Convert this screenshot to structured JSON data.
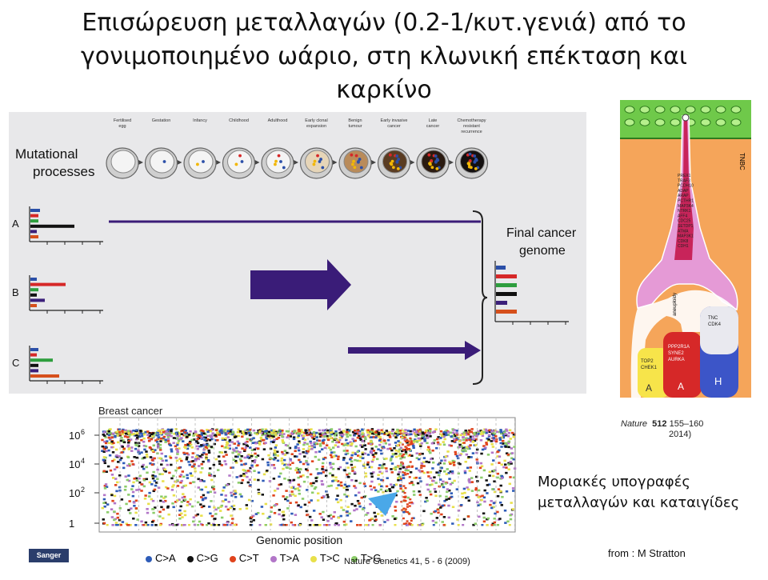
{
  "title": "Επισώρευση μεταλλαγών (0.2-1/κυτ.γενιά) από το γονιμοποιημένο ωάριο, στη κλωνική επέκταση και καρκίνο",
  "diagram": {
    "processes_label": "Mutational\nprocesses",
    "final_label": "Final cancer\ngenome",
    "stages": [
      "Fertilised\negg",
      "Gestation",
      "Infancy",
      "Childhood",
      "Adulthood",
      "Early clonal\nexpansion",
      "Benign\ntumour",
      "Early invasive\ncancer",
      "Late\ncancer",
      "Chemotherapy\nresistant\nrecurrence"
    ],
    "rows": [
      "A",
      "B",
      "C"
    ],
    "colors": {
      "blue": "#2b4fa8",
      "red": "#d62828",
      "green": "#2e9e3e",
      "black": "#111111",
      "purple": "#3b1f7a",
      "orange": "#d6501c",
      "arrow": "#3a1c78"
    }
  },
  "clone_tree": {
    "top_label": "TNBC",
    "genes_left": [
      "PREX1",
      "TRAF3",
      "PCDH10",
      "ADAP",
      "ARAP",
      "PCTHR1",
      "MAP3K4",
      "NTRK1",
      "AFF4",
      "CDC25",
      "SETDP1",
      "ATMA",
      "MAP3K1",
      "CDK8",
      "CDH1"
    ],
    "mid_label": "aneuploidy",
    "box_labels": [
      "TOP2\nCHEK1",
      "PPP2R1A\nSYNE2\nAURKA",
      "TNC\nCDK4"
    ],
    "bottom_letters": [
      "A",
      "A",
      "H"
    ],
    "citation_journal": "Nature",
    "citation_volume": "512",
    "citation_pages": "155–160",
    "citation_year": "2014)"
  },
  "breast_chart": {
    "title": "Breast cancer",
    "xlabel": "Genomic position",
    "y_ticks": [
      "10",
      "10",
      "10",
      "1"
    ],
    "y_exp": [
      "6",
      "4",
      "2",
      ""
    ],
    "legend": [
      {
        "label": "C>A",
        "color": "#2e5cb8"
      },
      {
        "label": "C>G",
        "color": "#111111"
      },
      {
        "label": "C>T",
        "color": "#e0431c"
      },
      {
        "label": "T>A",
        "color": "#b276c8"
      },
      {
        "label": "T>C",
        "color": "#e8e04a"
      },
      {
        "label": "T>G",
        "color": "#8ccc6a"
      }
    ],
    "citation": "Nature Genetics 41, 5 - 6 (2009)"
  },
  "signatures_label": "Μοριακές υπογραφές μεταλλαγών και καταιγίδες",
  "from_label": "from :  M Stratton",
  "logo_text": "Sanger"
}
